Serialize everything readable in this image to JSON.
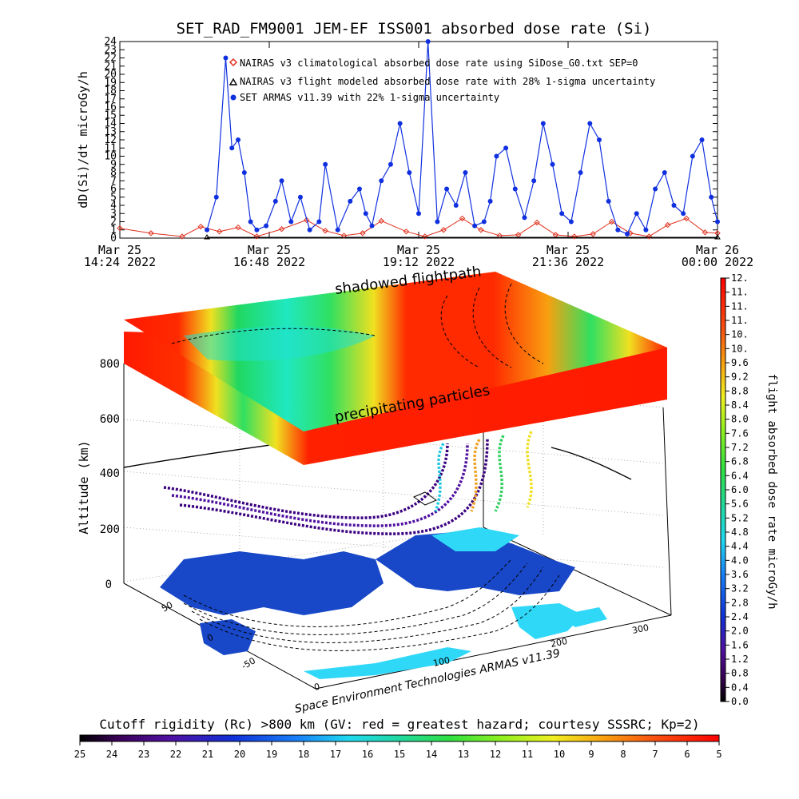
{
  "chart_data": [
    {
      "type": "line",
      "title": "SET_RAD_FM9001  JEM-EF ISS001 absorbed dose rate (Si)",
      "ylabel": "dD(Si)/dt microGy/h",
      "ylim": [
        0,
        24
      ],
      "yticks": [
        "0",
        "1",
        "2",
        "3",
        "4",
        "5",
        "6",
        "7",
        "8",
        "9",
        "10",
        "11",
        "12",
        "13",
        "14",
        "15",
        "16",
        "17",
        "18",
        "19",
        "20",
        "21",
        "22",
        "23",
        "24"
      ],
      "xlim": [
        "2022-03-25 14:24",
        "2022-03-26 00:00"
      ],
      "xticks": [
        {
          "date": "Mar 25",
          "time": "14:24 2022"
        },
        {
          "date": "Mar 25",
          "time": "16:48 2022"
        },
        {
          "date": "Mar 25",
          "time": "19:12 2022"
        },
        {
          "date": "Mar 25",
          "time": "21:36 2022"
        },
        {
          "date": "Mar 26",
          "time": "00:00 2022"
        }
      ],
      "legend_position": "top-center",
      "series": [
        {
          "name": "NAIRAS v3 climatological absorbed dose rate using SiDose_G0.txt SEP=0",
          "color": "#e0301e",
          "marker": "diamond",
          "x_hours": [
            0,
            0.5,
            1.0,
            1.3,
            1.6,
            1.9,
            2.2,
            2.6,
            3.0,
            3.3,
            3.6,
            3.9,
            4.2,
            4.6,
            4.9,
            5.2,
            5.5,
            5.8,
            6.1,
            6.4,
            6.7,
            7.0,
            7.3,
            7.6,
            7.9,
            8.2,
            8.5,
            8.8,
            9.1,
            9.4,
            9.6
          ],
          "y": [
            1.2,
            0.6,
            0.2,
            1.4,
            0.8,
            1.3,
            0.2,
            1.1,
            2.2,
            0.9,
            0.3,
            0.6,
            2.1,
            0.8,
            0.2,
            1.0,
            2.4,
            1.0,
            0.3,
            0.4,
            1.9,
            0.4,
            0.2,
            0.5,
            2.0,
            0.6,
            0.2,
            1.6,
            2.4,
            0.7,
            0.6
          ]
        },
        {
          "name": "NAIRAS v3 flight modeled absorbed dose rate with 28% 1-sigma uncertainty",
          "color": "#000000",
          "marker": "triangle",
          "x_hours": [
            1.4,
            9.6
          ],
          "y": [
            0.1,
            0.1
          ]
        },
        {
          "name": "SET ARMAS v11.39 with 22% 1-sigma uncertainty",
          "color": "#1030e0",
          "marker": "circle",
          "x_hours": [
            1.4,
            1.55,
            1.7,
            1.8,
            1.9,
            2.0,
            2.1,
            2.2,
            2.35,
            2.5,
            2.6,
            2.75,
            2.9,
            3.05,
            3.2,
            3.3,
            3.5,
            3.7,
            3.85,
            3.95,
            4.05,
            4.2,
            4.35,
            4.5,
            4.65,
            4.8,
            4.95,
            5.1,
            5.25,
            5.4,
            5.55,
            5.7,
            5.85,
            5.95,
            6.05,
            6.2,
            6.35,
            6.5,
            6.65,
            6.8,
            6.95,
            7.1,
            7.25,
            7.4,
            7.55,
            7.7,
            7.85,
            8.0,
            8.15,
            8.3,
            8.45,
            8.6,
            8.75,
            8.9,
            9.05,
            9.2,
            9.35,
            9.5,
            9.6
          ],
          "y": [
            1.0,
            5.0,
            22.0,
            11.0,
            12.0,
            8.0,
            2.0,
            1.0,
            1.5,
            4.5,
            7.0,
            2.0,
            5.0,
            1.0,
            2.0,
            9.0,
            1.0,
            4.5,
            6.0,
            3.0,
            1.5,
            7.0,
            9.0,
            14.0,
            8.0,
            3.0,
            24.0,
            2.0,
            6.0,
            4.0,
            8.0,
            1.5,
            2.0,
            4.5,
            10.0,
            11.0,
            6.0,
            2.5,
            7.0,
            14.0,
            9.0,
            3.0,
            2.0,
            8.0,
            14.0,
            12.0,
            4.5,
            1.0,
            0.5,
            3.0,
            1.0,
            6.0,
            8.0,
            4.0,
            3.0,
            10.0,
            12.0,
            5.0,
            2.0
          ]
        }
      ]
    },
    {
      "type": "heatmap",
      "zlabel": "Altitude (km)",
      "zticks": [
        "0",
        "200",
        "400",
        "600",
        "800"
      ],
      "lat_ticks": [
        "-50",
        "0",
        "50"
      ],
      "lon_ticks": [
        "0",
        "100",
        "200",
        "300"
      ],
      "annotations": [
        "shadowed flightpath",
        "precipitating particles"
      ],
      "credit": "Space Environment Technologies ARMAS v11.39"
    },
    {
      "type": "colorbar",
      "title": "flight absorbed dose rate microGy/h",
      "orientation": "vertical",
      "ticks": [
        "0.0",
        "0.4",
        "0.8",
        "1.2",
        "1.6",
        "2.0",
        "2.4",
        "2.8",
        "3.2",
        "3.6",
        "4.0",
        "4.4",
        "4.8",
        "5.2",
        "5.6",
        "6.0",
        "6.4",
        "6.8",
        "7.2",
        "7.6",
        "8.0",
        "8.4",
        "8.8",
        "9.2",
        "9.6",
        "10.",
        "10.",
        "11.",
        "11.",
        "11.",
        "12."
      ]
    },
    {
      "type": "colorbar",
      "title": "Cutoff rigidity (Rc) >800 km (GV: red = greatest hazard; courtesy SSSRC; Kp=2)",
      "orientation": "horizontal",
      "ticks": [
        "25",
        "24",
        "23",
        "22",
        "21",
        "20",
        "19",
        "18",
        "17",
        "16",
        "15",
        "14",
        "13",
        "12",
        "11",
        "10",
        "9",
        "8",
        "7",
        "6",
        "5"
      ]
    }
  ],
  "colors": {
    "naira_red": "#e0301e",
    "armas_blue": "#1030e0",
    "slab_red": "#ff1a00",
    "slab_green": "#20d860",
    "ocean_cyan": "#30d8f8",
    "land_blue": "#1848c8"
  }
}
